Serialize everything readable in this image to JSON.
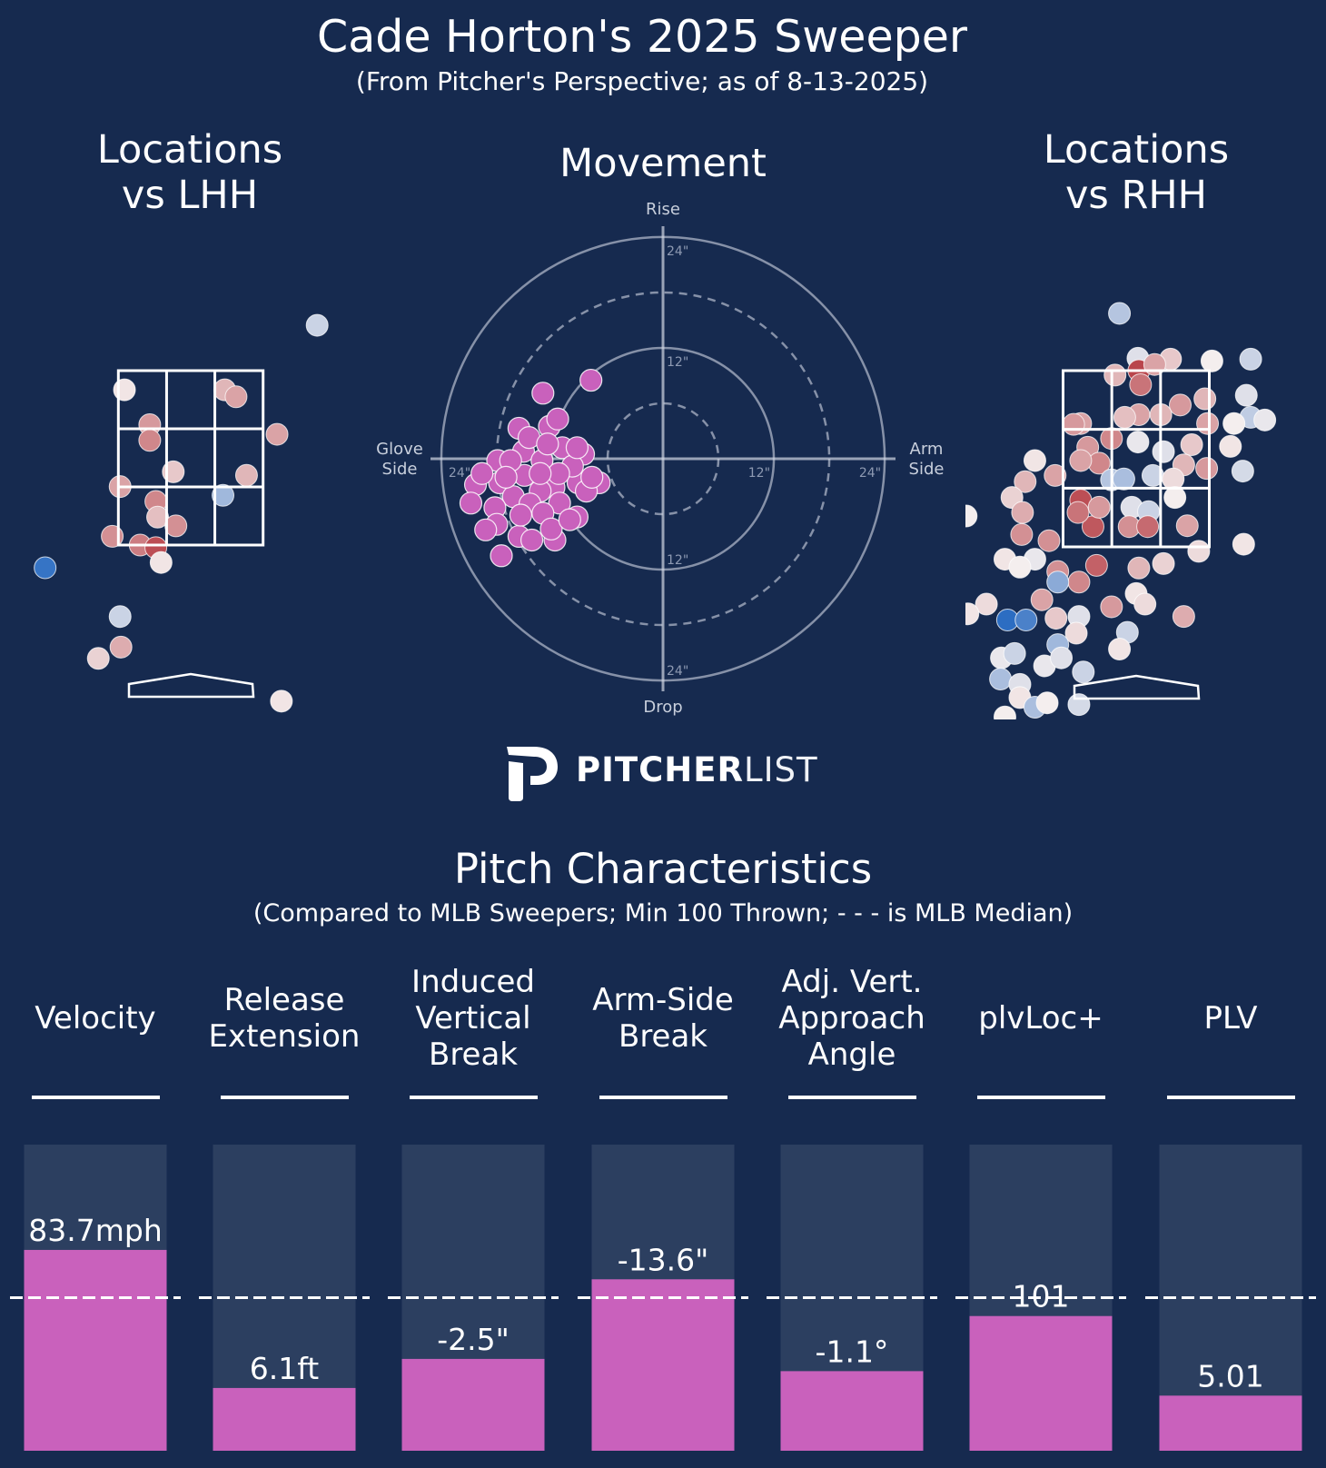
{
  "title": "Cade Horton's 2025 Sweeper",
  "subtitle": "(From Pitcher's Perspective; as of 8-13-2025)",
  "panels": {
    "lhh_title": [
      "Locations",
      "vs LHH"
    ],
    "movement_title": "Movement",
    "rhh_title": [
      "Locations",
      "vs RHH"
    ]
  },
  "movement_labels": {
    "rise": "Rise",
    "drop": "Drop",
    "glove_side": [
      "Glove",
      "Side"
    ],
    "arm_side": [
      "Arm",
      "Side"
    ],
    "ring_12": "12\"",
    "ring_24": "24\""
  },
  "logo": {
    "bold": "PITCHER",
    "light": "LIST"
  },
  "colors": {
    "background": "#162a4f",
    "pitch": "#c961bc",
    "bar_track": "#2c3f60",
    "cool": "#2166c0",
    "warm": "#b2323a",
    "neutral": "#f4eeee"
  },
  "characteristics": {
    "title": "Pitch Characteristics",
    "subtitle": "(Compared to MLB Sweepers; Min 100 Thrown; - - - is MLB Median)",
    "median_percentile": 0.5,
    "metrics": [
      {
        "label": [
          "Velocity"
        ],
        "value": "83.7mph",
        "percentile": 0.656
      },
      {
        "label": [
          "Release",
          "Extension"
        ],
        "value": "6.1ft",
        "percentile": 0.205
      },
      {
        "label": [
          "Induced",
          "Vertical",
          "Break"
        ],
        "value": "-2.5\"",
        "percentile": 0.3
      },
      {
        "label": [
          "Arm-Side",
          "Break"
        ],
        "value": "-13.6\"",
        "percentile": 0.56
      },
      {
        "label": [
          "Adj. Vert.",
          "Approach",
          "Angle"
        ],
        "value": "-1.1°",
        "percentile": 0.26
      },
      {
        "label": [
          "plvLoc+"
        ],
        "value": "101",
        "percentile": 0.44
      },
      {
        "label": [
          "PLV"
        ],
        "value": "5.01",
        "percentile": 0.18
      }
    ]
  },
  "chart_data": [
    {
      "type": "scatter",
      "title": "Locations vs LHH",
      "fields": [
        "plate_x_ft",
        "plate_z_ft",
        "color_value"
      ],
      "color_scale": "coolwarm (blue = -1, white = 0, red = +1)",
      "strike_zone": {
        "x": [
          -0.83,
          0.83
        ],
        "z": [
          1.5,
          3.5
        ],
        "grid": "3x3"
      },
      "points": [
        [
          1.45,
          4.02,
          -0.2
        ],
        [
          -0.76,
          3.28,
          0.05
        ],
        [
          0.39,
          3.28,
          0.3
        ],
        [
          0.52,
          3.2,
          0.4
        ],
        [
          -0.47,
          2.88,
          0.45
        ],
        [
          -0.47,
          2.7,
          0.55
        ],
        [
          0.99,
          2.77,
          0.4
        ],
        [
          -0.2,
          2.34,
          0.2
        ],
        [
          0.64,
          2.3,
          0.3
        ],
        [
          -0.81,
          2.17,
          0.4
        ],
        [
          -0.4,
          2.0,
          0.55
        ],
        [
          0.37,
          2.07,
          -0.4
        ],
        [
          -0.38,
          1.82,
          0.25
        ],
        [
          -0.17,
          1.72,
          0.5
        ],
        [
          -0.9,
          1.6,
          0.5
        ],
        [
          -0.58,
          1.5,
          0.6
        ],
        [
          -0.4,
          1.47,
          0.85
        ],
        [
          -0.34,
          1.3,
          0.05
        ],
        [
          -1.67,
          1.24,
          -0.9
        ],
        [
          -0.81,
          0.68,
          -0.2
        ],
        [
          -0.8,
          0.33,
          0.35
        ],
        [
          -1.06,
          0.2,
          0.15
        ],
        [
          1.04,
          -0.29,
          0.05
        ]
      ]
    },
    {
      "type": "scatter",
      "title": "Movement",
      "subtype": "polar-grid",
      "fields": [
        "horizontal_break_in",
        "induced_vertical_break_in"
      ],
      "rings_in": [
        6,
        12,
        18,
        24
      ],
      "xlim": [
        -24,
        24
      ],
      "ylim": [
        -24,
        24
      ],
      "points": [
        [
          -7.8,
          8.5
        ],
        [
          -13.0,
          7.1
        ],
        [
          -15.6,
          3.3
        ],
        [
          -12.3,
          3.5
        ],
        [
          -11.4,
          4.3
        ],
        [
          -10.9,
          1.2
        ],
        [
          -8.6,
          0.5
        ],
        [
          -15.1,
          0.8
        ],
        [
          -17.9,
          -0.2
        ],
        [
          -13.1,
          -0.2
        ],
        [
          -15.0,
          -1.8
        ],
        [
          -17.7,
          -2.6
        ],
        [
          -9.2,
          -2.6
        ],
        [
          -6.9,
          -2.6
        ],
        [
          -20.3,
          -2.8
        ],
        [
          -20.8,
          -4.8
        ],
        [
          -11.8,
          -3.1
        ],
        [
          -13.3,
          -3.5
        ],
        [
          -16.2,
          -4.1
        ],
        [
          -18.2,
          -5.3
        ],
        [
          -14.4,
          -4.9
        ],
        [
          -11.2,
          -4.8
        ],
        [
          -13.0,
          -5.9
        ],
        [
          -9.3,
          -6.3
        ],
        [
          -18.0,
          -7.1
        ],
        [
          -19.2,
          -7.7
        ],
        [
          -15.6,
          -8.4
        ],
        [
          -14.2,
          -8.8
        ],
        [
          -11.7,
          -8.8
        ],
        [
          -17.5,
          -10.5
        ],
        [
          -8.3,
          -3.5
        ],
        [
          -9.8,
          -0.8
        ],
        [
          -16.5,
          -0.2
        ],
        [
          -14.5,
          2.3
        ],
        [
          -11.3,
          -1.6
        ],
        [
          -17.0,
          -2.0
        ],
        [
          -12.1,
          -7.6
        ],
        [
          -10.1,
          -6.6
        ],
        [
          -19.6,
          -1.6
        ],
        [
          -9.3,
          1.2
        ],
        [
          -13.3,
          -1.6
        ],
        [
          -15.4,
          -6.1
        ],
        [
          -7.7,
          -2.0
        ],
        [
          -12.5,
          1.6
        ]
      ]
    },
    {
      "type": "scatter",
      "title": "Locations vs RHH",
      "fields": [
        "plate_x_ft",
        "plate_z_ft",
        "color_value"
      ],
      "color_scale": "coolwarm (blue = -1, white = 0, red = +1)",
      "strike_zone": {
        "x": [
          -0.83,
          0.83
        ],
        "z": [
          1.5,
          3.5
        ],
        "grid": "3x3"
      },
      "points": [
        [
          -0.19,
          4.15,
          -0.3
        ],
        [
          0.02,
          3.64,
          -0.1
        ],
        [
          0.39,
          3.63,
          0.2
        ],
        [
          0.86,
          3.61,
          0.0
        ],
        [
          1.3,
          3.63,
          -0.2
        ],
        [
          0.03,
          3.5,
          0.9
        ],
        [
          0.05,
          3.34,
          0.65
        ],
        [
          0.21,
          3.57,
          0.4
        ],
        [
          -0.24,
          3.45,
          0.3
        ],
        [
          0.5,
          3.11,
          0.45
        ],
        [
          0.78,
          3.18,
          0.3
        ],
        [
          1.25,
          3.22,
          -0.1
        ],
        [
          1.3,
          2.97,
          -0.25
        ],
        [
          1.46,
          2.94,
          -0.05
        ],
        [
          1.11,
          2.9,
          0.0
        ],
        [
          0.81,
          2.9,
          0.4
        ],
        [
          0.03,
          3.0,
          0.4
        ],
        [
          -0.13,
          2.97,
          0.25
        ],
        [
          0.28,
          3.0,
          0.3
        ],
        [
          -0.63,
          2.9,
          0.4
        ],
        [
          -0.71,
          2.89,
          0.45
        ],
        [
          0.02,
          2.69,
          -0.05
        ],
        [
          0.31,
          2.58,
          -0.1
        ],
        [
          -0.28,
          2.73,
          0.55
        ],
        [
          -0.55,
          2.63,
          0.45
        ],
        [
          -0.42,
          2.45,
          0.55
        ],
        [
          -0.63,
          2.48,
          0.4
        ],
        [
          0.63,
          2.66,
          0.2
        ],
        [
          0.54,
          2.43,
          0.3
        ],
        [
          0.8,
          2.39,
          0.45
        ],
        [
          1.07,
          2.64,
          0.05
        ],
        [
          1.21,
          2.36,
          -0.15
        ],
        [
          -1.15,
          2.48,
          0.05
        ],
        [
          -1.26,
          2.24,
          0.3
        ],
        [
          -1.41,
          2.06,
          0.15
        ],
        [
          -0.92,
          2.31,
          0.4
        ],
        [
          -0.28,
          2.26,
          -0.3
        ],
        [
          -0.14,
          2.27,
          -0.35
        ],
        [
          0.19,
          2.31,
          -0.2
        ],
        [
          0.42,
          2.27,
          0.1
        ],
        [
          -0.63,
          2.03,
          0.85
        ],
        [
          -0.49,
          1.73,
          0.8
        ],
        [
          -0.66,
          1.89,
          0.65
        ],
        [
          -0.42,
          1.95,
          0.45
        ],
        [
          -0.05,
          1.95,
          -0.1
        ],
        [
          0.14,
          1.9,
          -0.2
        ],
        [
          -0.08,
          1.73,
          0.5
        ],
        [
          0.13,
          1.73,
          0.7
        ],
        [
          0.58,
          1.74,
          0.4
        ],
        [
          0.44,
          2.06,
          0.0
        ],
        [
          -1.29,
          1.89,
          0.35
        ],
        [
          -1.3,
          1.64,
          0.5
        ],
        [
          -0.99,
          1.57,
          0.5
        ],
        [
          1.22,
          1.53,
          0.05
        ],
        [
          0.71,
          1.45,
          0.1
        ],
        [
          -1.49,
          1.36,
          0.05
        ],
        [
          -1.15,
          1.36,
          -0.05
        ],
        [
          -1.32,
          1.27,
          0.0
        ],
        [
          -0.45,
          1.29,
          0.75
        ],
        [
          -0.89,
          1.22,
          0.5
        ],
        [
          -0.65,
          1.1,
          0.55
        ],
        [
          -0.89,
          1.1,
          -0.5
        ],
        [
          0.03,
          1.26,
          0.3
        ],
        [
          0.31,
          1.31,
          0.15
        ],
        [
          0.0,
          0.97,
          0.05
        ],
        [
          0.1,
          0.85,
          0.1
        ],
        [
          -0.28,
          0.82,
          0.45
        ],
        [
          -1.07,
          0.9,
          0.4
        ],
        [
          -1.7,
          0.85,
          0.1
        ],
        [
          -1.91,
          0.74,
          0.05
        ],
        [
          -1.46,
          0.67,
          -0.95
        ],
        [
          -1.25,
          0.67,
          -0.8
        ],
        [
          -0.65,
          0.71,
          -0.1
        ],
        [
          -0.91,
          0.69,
          0.2
        ],
        [
          -0.1,
          0.53,
          -0.2
        ],
        [
          0.54,
          0.71,
          0.35
        ],
        [
          -0.19,
          0.34,
          0.05
        ],
        [
          -0.68,
          0.52,
          0.1
        ],
        [
          -0.89,
          0.39,
          -0.4
        ],
        [
          -1.53,
          0.24,
          -0.05
        ],
        [
          -1.38,
          0.29,
          -0.2
        ],
        [
          -1.04,
          0.15,
          -0.05
        ],
        [
          -0.85,
          0.24,
          -0.1
        ],
        [
          -0.6,
          0.08,
          -0.2
        ],
        [
          -1.54,
          0.0,
          -0.35
        ],
        [
          -1.32,
          -0.06,
          -0.1
        ],
        [
          -1.32,
          -0.21,
          0.05
        ],
        [
          -1.15,
          -0.32,
          -0.35
        ],
        [
          -1.01,
          -0.27,
          0.0
        ],
        [
          -0.65,
          -0.29,
          -0.15
        ],
        [
          -1.49,
          -0.43,
          0.0
        ],
        [
          -1.93,
          1.85,
          0.0
        ]
      ]
    },
    {
      "type": "bar",
      "title": "Pitch Characteristics",
      "categories": [
        "Velocity",
        "Release Extension",
        "Induced Vertical Break",
        "Arm-Side Break",
        "Adj. Vert. Approach Angle",
        "plvLoc+",
        "PLV"
      ],
      "values_percentile": [
        0.656,
        0.205,
        0.3,
        0.56,
        0.26,
        0.44,
        0.18
      ],
      "data_labels": [
        "83.7mph",
        "6.1ft",
        "-2.5\"",
        "-13.6\"",
        "-1.1°",
        "101",
        "5.01"
      ],
      "reference_line": {
        "label": "MLB Median",
        "value": 0.5,
        "style": "dashed"
      },
      "ylim": [
        0,
        1
      ]
    }
  ]
}
